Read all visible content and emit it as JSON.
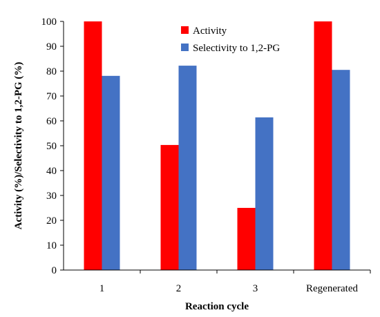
{
  "chart_data": {
    "type": "bar",
    "categories": [
      "1",
      "2",
      "3",
      "Regenerated"
    ],
    "series": [
      {
        "name": "Activity",
        "color": "#ff0000",
        "values": [
          100,
          50.3,
          25,
          100
        ]
      },
      {
        "name": "Selectivity to 1,2-PG",
        "color": "#4472c4",
        "values": [
          78.1,
          82.2,
          61.4,
          80.5
        ]
      }
    ],
    "xlabel": "Reaction cycle",
    "ylabel": "Activity (%)/Selectivity to 1,2-PG (%)",
    "ylim": [
      0,
      100
    ],
    "yticks": [
      0,
      10,
      20,
      30,
      40,
      50,
      60,
      70,
      80,
      90,
      100
    ],
    "grid": false,
    "legend_position": "top-center"
  }
}
